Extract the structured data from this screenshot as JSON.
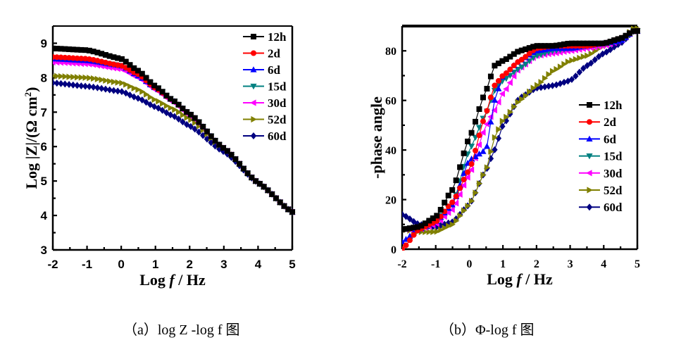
{
  "captions": {
    "a": "（a）log Z -log f 图",
    "b": "（b）Φ-log f 图"
  },
  "legend_labels": [
    "12h",
    "2d",
    "6d",
    "15d",
    "30d",
    "52d",
    "60d"
  ],
  "series_styles": [
    {
      "name": "12h",
      "color": "#000000",
      "marker": "square"
    },
    {
      "name": "2d",
      "color": "#ff0000",
      "marker": "circle"
    },
    {
      "name": "6d",
      "color": "#0000ff",
      "marker": "triangle-up"
    },
    {
      "name": "15d",
      "color": "#008080",
      "marker": "triangle-down"
    },
    {
      "name": "30d",
      "color": "#ff00ff",
      "marker": "triangle-left"
    },
    {
      "name": "52d",
      "color": "#808000",
      "marker": "triangle-right"
    },
    {
      "name": "60d",
      "color": "#000080",
      "marker": "diamond"
    }
  ],
  "chart_data": [
    {
      "type": "line",
      "title": "",
      "xlabel": "Log f / Hz",
      "ylabel": "Log |Z|/(Ω cm²)",
      "xlim": [
        -2,
        5
      ],
      "ylim": [
        3,
        9.5
      ],
      "xticks": [
        "-2",
        "-1",
        "0",
        "1",
        "2",
        "3",
        "4",
        "5"
      ],
      "yticks": [
        "3",
        "4",
        "5",
        "6",
        "7",
        "8",
        "9"
      ],
      "legend": "top-right",
      "grid": false,
      "x": [
        -2.0,
        -1.0,
        0.0,
        0.5,
        1.0,
        1.5,
        2.0,
        3.0,
        4.0,
        5.0
      ],
      "series": [
        {
          "name": "12h",
          "values": [
            8.85,
            8.8,
            8.55,
            8.2,
            7.75,
            7.35,
            6.95,
            5.95,
            4.95,
            4.1
          ]
        },
        {
          "name": "2d",
          "values": [
            8.6,
            8.55,
            8.35,
            8.1,
            7.7,
            7.35,
            6.95,
            5.95,
            4.95,
            4.1
          ]
        },
        {
          "name": "6d",
          "values": [
            8.55,
            8.5,
            8.35,
            8.05,
            7.7,
            7.35,
            6.95,
            5.95,
            4.95,
            4.1
          ]
        },
        {
          "name": "15d",
          "values": [
            8.55,
            8.5,
            8.35,
            8.1,
            7.75,
            7.35,
            6.95,
            5.95,
            4.95,
            4.1
          ]
        },
        {
          "name": "30d",
          "values": [
            8.45,
            8.4,
            8.25,
            8.0,
            7.65,
            7.3,
            6.9,
            5.95,
            4.95,
            4.1
          ]
        },
        {
          "name": "52d",
          "values": [
            8.05,
            8.0,
            7.85,
            7.65,
            7.35,
            7.1,
            6.8,
            5.95,
            4.95,
            4.1
          ]
        },
        {
          "name": "60d",
          "values": [
            7.85,
            7.75,
            7.6,
            7.4,
            7.15,
            6.9,
            6.6,
            5.85,
            4.95,
            4.1
          ]
        }
      ]
    },
    {
      "type": "line",
      "title": "",
      "xlabel": "Log f / Hz",
      "ylabel": "-phase angle",
      "xlim": [
        -2,
        5
      ],
      "ylim": [
        0,
        90
      ],
      "xticks": [
        "-2",
        "-1",
        "0",
        "1",
        "2",
        "3",
        "4",
        "5"
      ],
      "yticks": [
        "0",
        "20",
        "40",
        "60",
        "80"
      ],
      "legend": "center-right",
      "grid": false,
      "x": [
        -2.0,
        -1.5,
        -1.0,
        -0.5,
        0.0,
        0.5,
        0.75,
        1.0,
        1.5,
        2.0,
        2.5,
        3.0,
        3.5,
        4.0,
        4.5,
        4.9
      ],
      "series": [
        {
          "name": "12h",
          "values": [
            8,
            9,
            13,
            24,
            45,
            64,
            74,
            76,
            80,
            82,
            82,
            83,
            83,
            83,
            85,
            88
          ]
        },
        {
          "name": "2d",
          "values": [
            0,
            8,
            11,
            19,
            32,
            55,
            66,
            70,
            76,
            81,
            82,
            82,
            82,
            83,
            85,
            88
          ]
        },
        {
          "name": "6d",
          "values": [
            3,
            8,
            11,
            18,
            36,
            40,
            60,
            70,
            76,
            80,
            81,
            81,
            82,
            83,
            84,
            88
          ]
        },
        {
          "name": "15d",
          "values": [
            8,
            9,
            12,
            18,
            40,
            55,
            64,
            68,
            73,
            78,
            80,
            81,
            82,
            83,
            84,
            88
          ]
        },
        {
          "name": "30d",
          "values": [
            8,
            8,
            10,
            16,
            30,
            50,
            56,
            63,
            73,
            78,
            79,
            80,
            81,
            82,
            84,
            88
          ]
        },
        {
          "name": "52d",
          "values": [
            8,
            7,
            7,
            10,
            18,
            32,
            45,
            52,
            60,
            66,
            72,
            76,
            78,
            82,
            84,
            89
          ]
        },
        {
          "name": "60d",
          "values": [
            14,
            10,
            9,
            11,
            18,
            32,
            40,
            50,
            61,
            65,
            66,
            68,
            74,
            79,
            83,
            88
          ]
        }
      ]
    }
  ]
}
